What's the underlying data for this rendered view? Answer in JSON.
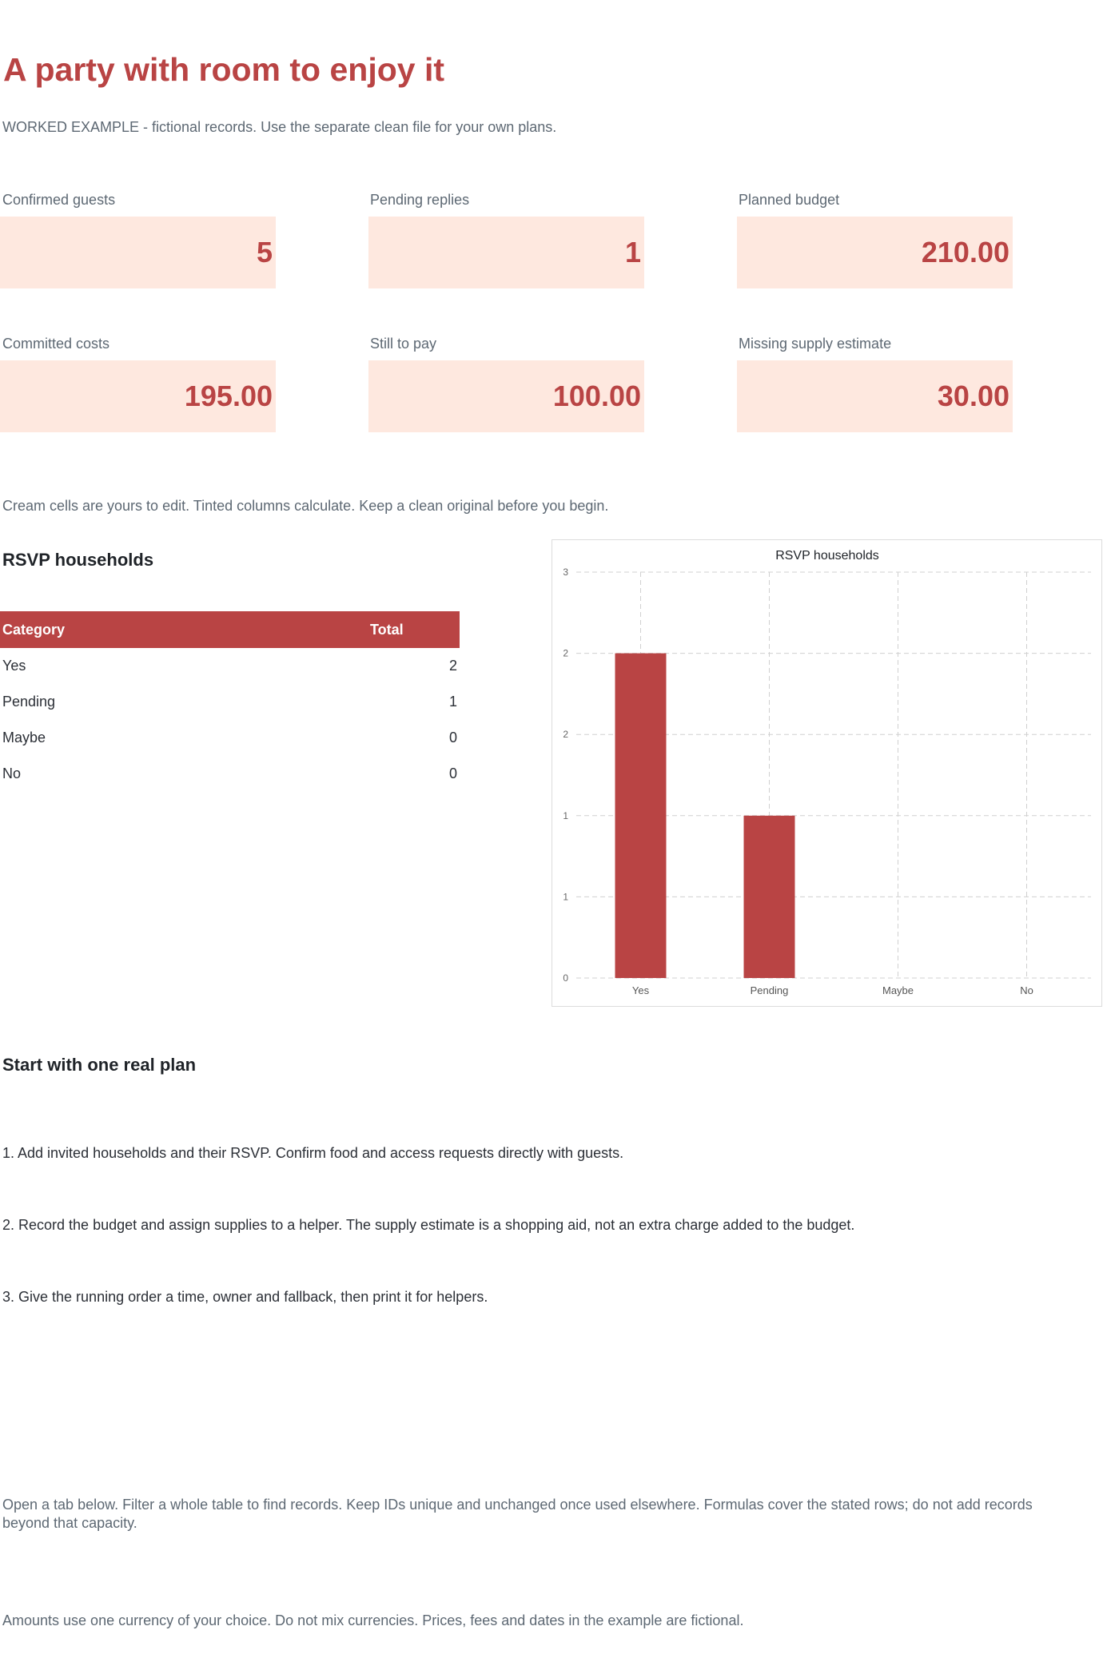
{
  "header": {
    "title": "A party with room to enjoy it",
    "subtitle": "WORKED EXAMPLE - fictional records. Use the separate clean file for your own plans."
  },
  "kpis": [
    {
      "label": "Confirmed guests",
      "value": "5"
    },
    {
      "label": "Pending replies",
      "value": "1"
    },
    {
      "label": "Planned budget",
      "value": "210.00"
    },
    {
      "label": "Committed costs",
      "value": "195.00"
    },
    {
      "label": "Still to pay",
      "value": "100.00"
    },
    {
      "label": "Missing supply estimate",
      "value": "30.00"
    }
  ],
  "edit_note": "Cream cells are yours to edit. Tinted columns calculate. Keep a clean original before you begin.",
  "rsvp": {
    "heading": "RSVP households",
    "table": {
      "headers": [
        "Category",
        "Total"
      ],
      "rows": [
        {
          "category": "Yes",
          "total": "2"
        },
        {
          "category": "Pending",
          "total": "1"
        },
        {
          "category": "Maybe",
          "total": "0"
        },
        {
          "category": "No",
          "total": "0"
        }
      ]
    }
  },
  "chart_data": {
    "type": "bar",
    "title": "RSVP households",
    "categories": [
      "Yes",
      "Pending",
      "Maybe",
      "No"
    ],
    "values": [
      2,
      1,
      0,
      0
    ],
    "ylim": [
      0,
      2.5
    ],
    "yticks": [
      0,
      0.5,
      1,
      1.5,
      2,
      2.5
    ],
    "ytick_labels": [
      "0",
      "1",
      "1",
      "2",
      "2",
      "3"
    ],
    "xlabel": "",
    "ylabel": "",
    "grid": true,
    "bar_color": "#b94444"
  },
  "plan": {
    "heading": "Start with one real plan",
    "steps": [
      "1. Add invited households and their RSVP. Confirm food and access requests directly with guests.",
      "2. Record the budget and assign supplies to a helper. The supply estimate is a shopping aid, not an extra charge added to the budget.",
      "3. Give the running order a time, owner and fallback, then print it for helpers."
    ]
  },
  "footer": {
    "tabs_note": "Open a tab below. Filter a whole table to find records. Keep IDs unique and unchanged once used elsewhere. Formulas cover the stated rows; do not add records beyond that capacity.",
    "currency_note": "Amounts use one currency of your choice. Do not mix currencies. Prices, fees and dates in the example are fictional."
  },
  "colors": {
    "accent": "#b94444",
    "kpi_fill": "#fee8df",
    "muted_text": "#5d6873"
  }
}
